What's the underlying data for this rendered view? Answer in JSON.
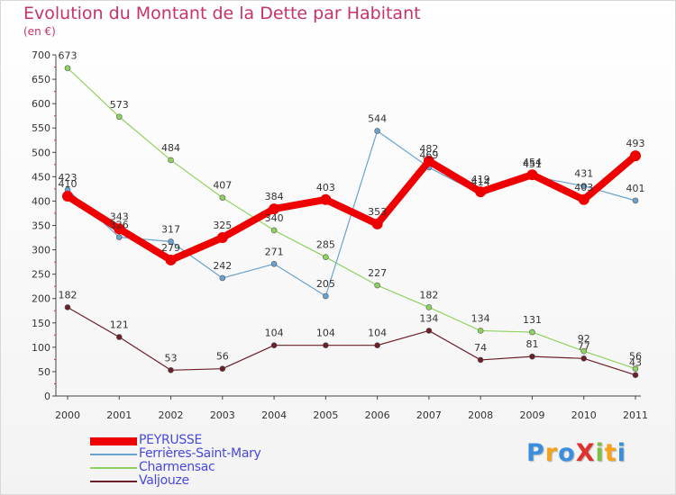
{
  "title": "Evolution du Montant de la Dette par Habitant",
  "unit": "(en €)",
  "logo": {
    "text": "ProXiti",
    "letters": [
      {
        "ch": "P",
        "color": "#3b8ede"
      },
      {
        "ch": "r",
        "color": "#f7a21b"
      },
      {
        "ch": "o",
        "color": "#3b8ede"
      },
      {
        "ch": "X",
        "color": "#e0312e"
      },
      {
        "ch": "i",
        "color": "#7ec043"
      },
      {
        "ch": "t",
        "color": "#f7a21b"
      },
      {
        "ch": "i",
        "color": "#3b8ede"
      }
    ]
  },
  "chart_data": {
    "type": "line",
    "x": [
      2000,
      2001,
      2002,
      2003,
      2004,
      2005,
      2006,
      2007,
      2008,
      2009,
      2010,
      2011
    ],
    "ylim": [
      0,
      700
    ],
    "yticks": [
      0,
      50,
      100,
      150,
      200,
      250,
      300,
      350,
      400,
      450,
      500,
      550,
      600,
      650,
      700
    ],
    "grid": false,
    "legend_position": "bottom-left",
    "series": [
      {
        "name": "Valjouze",
        "color": "#6b1f2a",
        "width": 1.2,
        "marker": 3,
        "values": [
          182,
          121,
          53,
          56,
          104,
          104,
          104,
          134,
          74,
          81,
          77,
          43
        ]
      },
      {
        "name": "Charmensac",
        "color": "#8fd35f",
        "width": 1.2,
        "marker": 3,
        "values": [
          673,
          573,
          484,
          407,
          340,
          285,
          227,
          182,
          134,
          131,
          92,
          56
        ]
      },
      {
        "name": "Ferrières-Saint-Mary",
        "color": "#6aa2cf",
        "width": 1.2,
        "marker": 3,
        "values": [
          423,
          326,
          317,
          242,
          271,
          205,
          544,
          469,
          414,
          451,
          431,
          401
        ]
      },
      {
        "name": "PEYRUSSE",
        "color": "#ee0000",
        "width": 8,
        "marker": 6,
        "values": [
          410,
          343,
          279,
          325,
          384,
          403,
          353,
          482,
          419,
          454,
          403,
          493
        ]
      }
    ],
    "legend_order": [
      "PEYRUSSE",
      "Ferrières-Saint-Mary",
      "Charmensac",
      "Valjouze"
    ]
  }
}
